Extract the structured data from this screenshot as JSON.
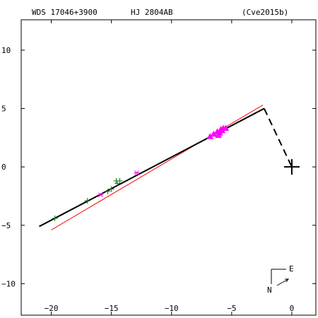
{
  "header": {
    "left": "WDS 17046+3900",
    "center": "HJ 2804AB",
    "right": "(Cve2015b)"
  },
  "compass": {
    "east_label": "E",
    "north_label": "N"
  },
  "colors": {
    "orbit": "#000000",
    "fit_line": "#ff0000",
    "obs_green": "#008000",
    "obs_magenta": "#ff00ff",
    "origin": "#000000"
  },
  "chart_data": {
    "type": "scatter",
    "title": "",
    "xlabel": "",
    "ylabel": "",
    "xlim": [
      -22.5,
      2
    ],
    "ylim": [
      12.6,
      -12.7
    ],
    "x_ticks": [
      -20,
      -15,
      -10,
      -5,
      0
    ],
    "x_tick_labels": [
      "−20",
      "−15",
      "−10",
      "−5",
      "0"
    ],
    "y_ticks": [
      10,
      5,
      0,
      -5,
      -10
    ],
    "y_tick_labels": [
      "10",
      "5",
      "0",
      "−5",
      "−10"
    ],
    "grid": false,
    "orbit_line": [
      [
        -21.0,
        -5.1
      ],
      [
        -2.3,
        5.0
      ]
    ],
    "red_line": [
      [
        -20.0,
        -5.4
      ],
      [
        -2.4,
        5.3
      ]
    ],
    "node_segment": [
      [
        -2.3,
        5.0
      ],
      [
        0,
        0
      ]
    ],
    "origin": [
      0,
      0
    ],
    "series": [
      {
        "marker": "plus",
        "color": "green",
        "points": [
          [
            -19.7,
            -4.4
          ],
          [
            -17.0,
            -2.9
          ],
          [
            -15.3,
            -2.1
          ],
          [
            -15.0,
            -1.9
          ],
          [
            -14.6,
            -1.2
          ],
          [
            -14.3,
            -1.2
          ],
          [
            -14.5,
            -1.4
          ]
        ]
      },
      {
        "marker": "asterisk",
        "color": "magenta",
        "points": [
          [
            -15.9,
            -2.4
          ],
          [
            -12.9,
            -0.5
          ]
        ]
      },
      {
        "marker": "triangle",
        "color": "magenta",
        "points": [
          [
            -6.8,
            2.6
          ],
          [
            -6.5,
            2.8
          ],
          [
            -6.2,
            3.0
          ],
          [
            -6.0,
            2.9
          ],
          [
            -5.9,
            3.2
          ],
          [
            -5.7,
            3.3
          ],
          [
            -5.5,
            3.3
          ],
          [
            -5.8,
            3.1
          ],
          [
            -6.1,
            2.7
          ]
        ]
      }
    ]
  }
}
